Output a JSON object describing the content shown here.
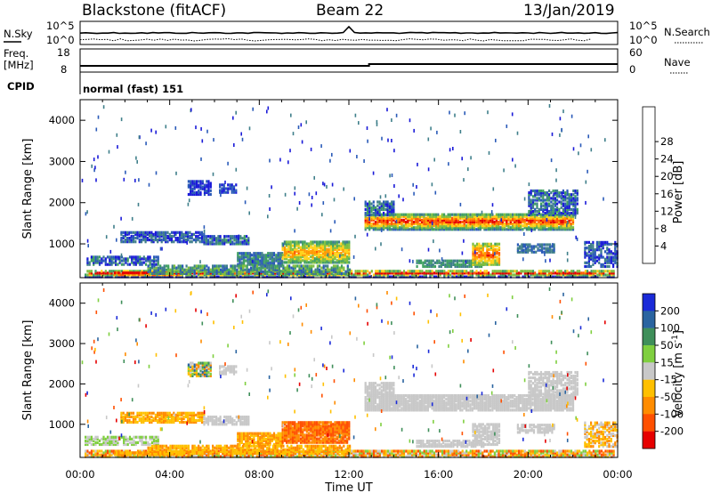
{
  "header": {
    "station": "Blackstone (fitACF)",
    "beam": "Beam 22",
    "date": "13/Jan/2019"
  },
  "top_panels": {
    "noise": {
      "left_label": "N.Sky",
      "right_label": "N.Search",
      "left_ticks": [
        "10^5",
        "10^0"
      ],
      "right_ticks": [
        "10^5",
        "10^0"
      ]
    },
    "freq": {
      "left_label_1": "Freq.",
      "left_label_2": "[MHz]",
      "right_label": "Nave",
      "left_ticks": [
        "18",
        "8"
      ],
      "right_ticks": [
        "60",
        "0"
      ]
    },
    "cpid": {
      "label": "CPID",
      "mode": "normal (fast) 151"
    }
  },
  "colors": {
    "power": [
      "#1a1ad8",
      "#2a5ab8",
      "#3f7f8a",
      "#3fa060",
      "#7fbf3f",
      "#ffd21a",
      "#ff9a00",
      "#ff5a00",
      "#e60000"
    ],
    "velocity": [
      "#1a2ad8",
      "#2a64a0",
      "#3f8f5a",
      "#7fcf3f",
      "#c8c8c8",
      "#ffc000",
      "#ff8c00",
      "#ff5000",
      "#e60000"
    ]
  },
  "chart_data": [
    {
      "type": "heatmap",
      "name": "power",
      "xlabel": "",
      "ylabel": "Slant Range [km]",
      "x_ticks": [
        "00:00",
        "04:00",
        "08:00",
        "12:00",
        "16:00",
        "20:00",
        "00:00"
      ],
      "y_ticks": [
        1000,
        2000,
        3000,
        4000
      ],
      "ylim": [
        180,
        4500
      ],
      "colorbar_label": "Power [dB]",
      "colorbar_ticks": [
        "4",
        "8",
        "12",
        "16",
        "20",
        "24",
        "28"
      ]
    },
    {
      "type": "heatmap",
      "name": "velocity",
      "xlabel": "Time UT",
      "ylabel": "Slant Range [km]",
      "x_ticks": [
        "00:00",
        "04:00",
        "08:00",
        "12:00",
        "16:00",
        "20:00",
        "00:00"
      ],
      "y_ticks": [
        1000,
        2000,
        3000,
        4000
      ],
      "ylim": [
        180,
        4500
      ],
      "colorbar_label": "Velocity [m s",
      "colorbar_label_sup": "-1",
      "colorbar_ticks": [
        "200",
        "100",
        "50",
        "15",
        "-15",
        "-50",
        "-100",
        "-200"
      ]
    }
  ]
}
